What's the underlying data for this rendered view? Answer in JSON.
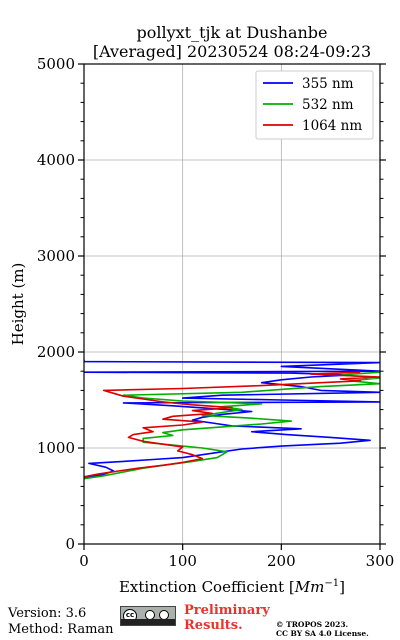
{
  "chart_data": {
    "type": "line",
    "title_line1": "pollyxt_tjk at Dushanbe",
    "title_line2": "[Averaged] 20230524 08:24-09:23",
    "xlabel_prefix": "Extinction Coefficient [",
    "xlabel_unit_base": "Mm",
    "xlabel_unit_exp": "−1",
    "xlabel_suffix": "]",
    "ylabel": "Height (m)",
    "xlim": [
      0,
      300
    ],
    "ylim": [
      0,
      5000
    ],
    "xticks": [
      0,
      100,
      200,
      300
    ],
    "yticks": [
      0,
      1000,
      2000,
      3000,
      4000,
      5000
    ],
    "grid": true,
    "legend_position": "top-right",
    "series": [
      {
        "name": "355 nm",
        "color": "#0000ff",
        "points": [
          [
            0,
            690
          ],
          [
            18,
            720
          ],
          [
            30,
            760
          ],
          [
            22,
            800
          ],
          [
            5,
            840
          ],
          [
            40,
            860
          ],
          [
            70,
            880
          ],
          [
            100,
            900
          ],
          [
            120,
            930
          ],
          [
            140,
            960
          ],
          [
            160,
            990
          ],
          [
            200,
            1020
          ],
          [
            260,
            1050
          ],
          [
            290,
            1080
          ],
          [
            250,
            1110
          ],
          [
            205,
            1140
          ],
          [
            170,
            1170
          ],
          [
            220,
            1200
          ],
          [
            150,
            1230
          ],
          [
            130,
            1260
          ],
          [
            110,
            1290
          ],
          [
            120,
            1320
          ],
          [
            140,
            1350
          ],
          [
            170,
            1380
          ],
          [
            130,
            1410
          ],
          [
            90,
            1440
          ],
          [
            40,
            1470
          ],
          [
            300,
            1480
          ],
          [
            200,
            1500
          ],
          [
            100,
            1520
          ],
          [
            140,
            1550
          ],
          [
            300,
            1580
          ],
          [
            240,
            1600
          ],
          [
            220,
            1640
          ],
          [
            180,
            1680
          ],
          [
            200,
            1710
          ],
          [
            230,
            1740
          ],
          [
            270,
            1760
          ],
          [
            210,
            1780
          ],
          [
            0,
            1790
          ],
          [
            300,
            1800
          ],
          [
            200,
            1850
          ],
          [
            300,
            1890
          ],
          [
            0,
            1900
          ],
          [
            0,
            1920
          ]
        ]
      },
      {
        "name": "532 nm",
        "color": "#00b000",
        "points": [
          [
            0,
            680
          ],
          [
            20,
            710
          ],
          [
            40,
            750
          ],
          [
            60,
            790
          ],
          [
            80,
            820
          ],
          [
            110,
            860
          ],
          [
            135,
            900
          ],
          [
            145,
            960
          ],
          [
            120,
            1000
          ],
          [
            90,
            1030
          ],
          [
            60,
            1060
          ],
          [
            60,
            1100
          ],
          [
            90,
            1130
          ],
          [
            80,
            1160
          ],
          [
            100,
            1190
          ],
          [
            140,
            1220
          ],
          [
            180,
            1250
          ],
          [
            210,
            1280
          ],
          [
            170,
            1310
          ],
          [
            120,
            1340
          ],
          [
            140,
            1370
          ],
          [
            160,
            1400
          ],
          [
            140,
            1430
          ],
          [
            180,
            1460
          ],
          [
            100,
            1490
          ],
          [
            60,
            1520
          ],
          [
            40,
            1550
          ],
          [
            160,
            1580
          ],
          [
            200,
            1610
          ],
          [
            240,
            1640
          ],
          [
            300,
            1670
          ],
          [
            270,
            1700
          ],
          [
            300,
            1730
          ],
          [
            260,
            1760
          ],
          [
            300,
            1790
          ]
        ]
      },
      {
        "name": "1064 nm",
        "color": "#dd0000",
        "points": [
          [
            0,
            700
          ],
          [
            15,
            730
          ],
          [
            35,
            760
          ],
          [
            55,
            790
          ],
          [
            80,
            820
          ],
          [
            100,
            850
          ],
          [
            120,
            890
          ],
          [
            110,
            930
          ],
          [
            95,
            970
          ],
          [
            100,
            1010
          ],
          [
            80,
            1040
          ],
          [
            60,
            1070
          ],
          [
            45,
            1110
          ],
          [
            50,
            1140
          ],
          [
            70,
            1170
          ],
          [
            60,
            1210
          ],
          [
            100,
            1240
          ],
          [
            120,
            1270
          ],
          [
            80,
            1300
          ],
          [
            90,
            1330
          ],
          [
            130,
            1360
          ],
          [
            110,
            1390
          ],
          [
            150,
            1420
          ],
          [
            110,
            1450
          ],
          [
            80,
            1480
          ],
          [
            60,
            1510
          ],
          [
            40,
            1540
          ],
          [
            30,
            1570
          ],
          [
            20,
            1600
          ],
          [
            100,
            1620
          ],
          [
            180,
            1650
          ],
          [
            240,
            1680
          ],
          [
            280,
            1700
          ],
          [
            260,
            1720
          ],
          [
            300,
            1740
          ],
          [
            230,
            1770
          ],
          [
            280,
            1790
          ]
        ]
      }
    ]
  },
  "footer": {
    "version_line": "Version: 3.6",
    "method_line": "Method: Raman",
    "preliminary_line1": "Preliminary",
    "preliminary_line2": "Results.",
    "copyright_line1": "© TROPOS 2023.",
    "copyright_line2": "CC BY SA 4.0 License.",
    "cc_badge_glyph": "cc"
  }
}
